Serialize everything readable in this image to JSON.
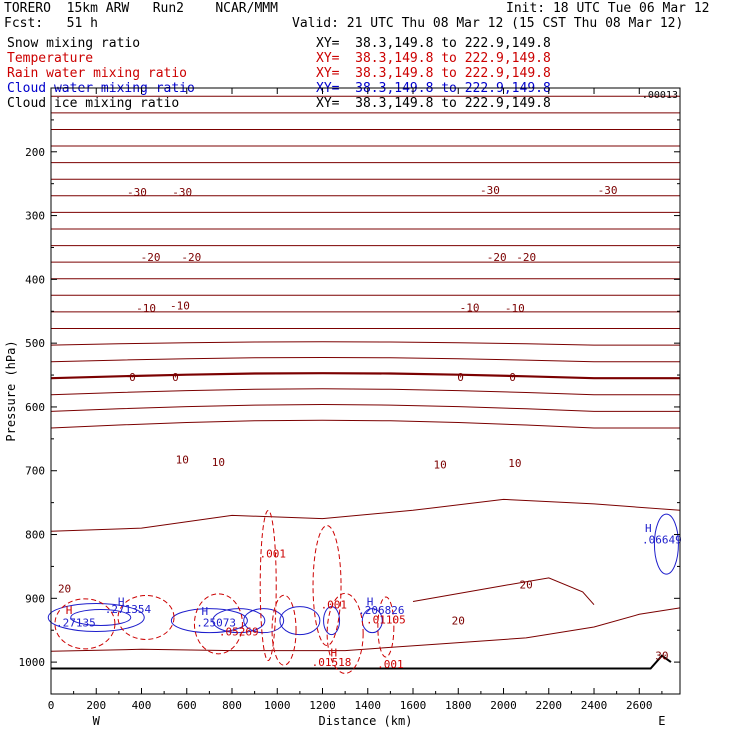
{
  "header": {
    "model": "TORERO  15km ARW   Run2    NCAR/MMM",
    "init": "Init: 18 UTC Tue 06 Mar 12",
    "fcst": "Fcst:   51 h",
    "valid": "Valid: 21 UTC Thu 08 Mar 12 (15 CST Thu 08 Mar 12)"
  },
  "fields": [
    {
      "name": "Snow mixing ratio",
      "xy": "XY=  38.3,149.8 to 222.9,149.8",
      "color": "#000000",
      "xy_color": "#000000"
    },
    {
      "name": "Temperature",
      "xy": "XY=  38.3,149.8 to 222.9,149.8",
      "color": "#cc0000",
      "xy_color": "#cc0000"
    },
    {
      "name": "Rain water mixing ratio",
      "xy": "XY=  38.3,149.8 to 222.9,149.8",
      "color": "#cc0000",
      "xy_color": "#cc0000"
    },
    {
      "name": "Cloud water mixing ratio",
      "xy": "XY=  38.3,149.8 to 222.9,149.8",
      "color": "#0000cc",
      "xy_color": "#0000cc"
    },
    {
      "name": "Cloud ice mixing ratio",
      "xy": "XY=  38.3,149.8 to 222.9,149.8",
      "color": "#000000",
      "xy_color": "#000000"
    }
  ],
  "chart_data": {
    "type": "cross-section contour",
    "xlabel": "Distance (km)",
    "ylabel": "Pressure (hPa)",
    "xlim": [
      0,
      2780
    ],
    "ylim": [
      1050,
      100
    ],
    "x_ticks": [
      0,
      200,
      400,
      600,
      800,
      1000,
      1200,
      1400,
      1600,
      1800,
      2000,
      2200,
      2400,
      2600
    ],
    "y_ticks": [
      200,
      300,
      400,
      500,
      600,
      700,
      800,
      900,
      1000
    ],
    "x_end_labels": {
      "left": "W",
      "right": "E"
    },
    "top_right_value": ".00013",
    "temperature_isotherm_labels": [
      {
        "value": "-30",
        "x": 380,
        "p": 263
      },
      {
        "value": "-30",
        "x": 580,
        "p": 263
      },
      {
        "value": "-30",
        "x": 1940,
        "p": 260
      },
      {
        "value": "-30",
        "x": 2460,
        "p": 260
      },
      {
        "value": "-20",
        "x": 440,
        "p": 365
      },
      {
        "value": "-20",
        "x": 620,
        "p": 365
      },
      {
        "value": "-20",
        "x": 1970,
        "p": 365
      },
      {
        "value": "-20",
        "x": 2100,
        "p": 365
      },
      {
        "value": "-10",
        "x": 420,
        "p": 445
      },
      {
        "value": "-10",
        "x": 570,
        "p": 441
      },
      {
        "value": "-10",
        "x": 1850,
        "p": 444
      },
      {
        "value": "-10",
        "x": 2050,
        "p": 445
      },
      {
        "value": "0",
        "x": 360,
        "p": 553
      },
      {
        "value": "0",
        "x": 550,
        "p": 553
      },
      {
        "value": "0",
        "x": 1810,
        "p": 553
      },
      {
        "value": "0",
        "x": 2040,
        "p": 553
      },
      {
        "value": "10",
        "x": 580,
        "p": 682
      },
      {
        "value": "10",
        "x": 740,
        "p": 686
      },
      {
        "value": "10",
        "x": 1720,
        "p": 690
      },
      {
        "value": "10",
        "x": 2050,
        "p": 688
      },
      {
        "value": "20",
        "x": 60,
        "p": 885
      },
      {
        "value": "20",
        "x": 1800,
        "p": 935
      },
      {
        "value": "20",
        "x": 2100,
        "p": 878
      },
      {
        "value": "30",
        "x": 2700,
        "p": 990
      }
    ],
    "rain_labels": [
      {
        "value": ".001",
        "x": 980,
        "p": 830
      },
      {
        "value": ".001",
        "x": 1250,
        "p": 910
      },
      {
        "value": ".05269",
        "x": 830,
        "p": 952
      },
      {
        "value": ".01105",
        "x": 1480,
        "p": 933
      },
      {
        "value": ".01518",
        "x": 1240,
        "p": 1000
      },
      {
        "value": ".001",
        "x": 1500,
        "p": 1003
      }
    ],
    "cloud_water_labels": [
      {
        "value": ".27135",
        "x": 110,
        "p": 938
      },
      {
        "value": ".271354",
        "x": 340,
        "p": 917
      },
      {
        "value": ".25073",
        "x": 730,
        "p": 938
      },
      {
        "value": ".206826",
        "x": 1460,
        "p": 918
      },
      {
        "value": ".06649",
        "x": 2700,
        "p": 808
      }
    ],
    "maxima_markers": [
      {
        "value": "H",
        "x": 310,
        "p": 905,
        "field": "cloud_water"
      },
      {
        "value": "H",
        "x": 680,
        "p": 920,
        "field": "cloud_water"
      },
      {
        "value": "H",
        "x": 1410,
        "p": 905,
        "field": "cloud_water"
      },
      {
        "value": "H",
        "x": 2640,
        "p": 790,
        "field": "cloud_water"
      },
      {
        "value": "H",
        "x": 80,
        "p": 918,
        "field": "rain"
      },
      {
        "value": "H",
        "x": 1250,
        "p": 985,
        "field": "rain"
      }
    ]
  }
}
